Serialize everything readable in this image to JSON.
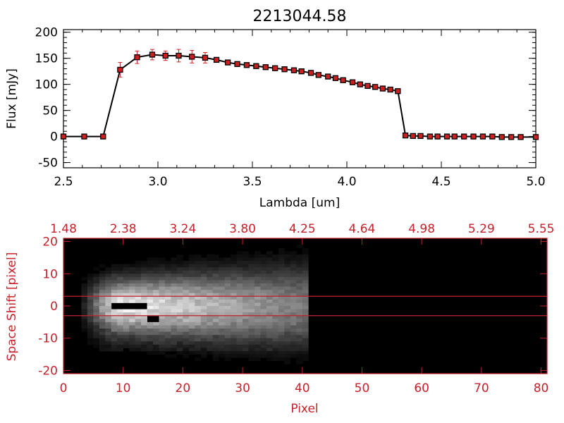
{
  "chart_data": [
    {
      "type": "line",
      "title": "2213044.58",
      "xlabel": "Lambda [um]",
      "ylabel": "Flux [mJy]",
      "xlim": [
        2.5,
        5.0
      ],
      "ylim": [
        -60,
        205
      ],
      "x_ticks": [
        "2.5",
        "3.0",
        "3.5",
        "4.0",
        "4.5",
        "5.0"
      ],
      "y_ticks": [
        "200",
        "150",
        "100",
        "50",
        "0",
        "-50"
      ],
      "x_tick_values": [
        2.5,
        3.0,
        3.5,
        4.0,
        4.5,
        5.0
      ],
      "y_tick_values": [
        200,
        150,
        100,
        50,
        0,
        -50
      ],
      "series": [
        {
          "x": [
            2.5,
            2.61,
            2.71,
            2.8,
            2.89,
            2.97,
            3.04,
            3.11,
            3.18,
            3.25,
            3.31,
            3.37,
            3.42,
            3.47,
            3.52,
            3.57,
            3.62,
            3.67,
            3.72,
            3.76,
            3.81,
            3.85,
            3.9,
            3.94,
            3.98,
            4.03,
            4.07,
            4.11,
            4.15,
            4.19,
            4.23,
            4.27,
            4.31,
            4.35,
            4.39,
            4.44,
            4.48,
            4.53,
            4.57,
            4.62,
            4.67,
            4.72,
            4.77,
            4.82,
            4.87,
            4.92,
            5.0
          ],
          "values": [
            0,
            0,
            0,
            128,
            152,
            157,
            155,
            155,
            153,
            151,
            147,
            142,
            139,
            137,
            135,
            133,
            131,
            129,
            127,
            125,
            122,
            118,
            115,
            112,
            108,
            104,
            100,
            97,
            95,
            92,
            90,
            87,
            2,
            1,
            1,
            0,
            0,
            0,
            0,
            0,
            0,
            0,
            0,
            -1,
            -1,
            -1,
            -1
          ],
          "errors": [
            0,
            0,
            0,
            14,
            12,
            10,
            9,
            12,
            12,
            10,
            4,
            3,
            2,
            2,
            2,
            2,
            2,
            2,
            2,
            2,
            2,
            2,
            2,
            2,
            2,
            2,
            2,
            2,
            2,
            2,
            2,
            2,
            0,
            0,
            0,
            0,
            0,
            0,
            0,
            0,
            0,
            0,
            0,
            0,
            0,
            0,
            0
          ]
        }
      ],
      "colors": {
        "line": "#000000",
        "marker": "#cc2020",
        "errorbar": "#cc2020"
      }
    },
    {
      "type": "heatmap",
      "xlabel": "Pixel",
      "ylabel": "Space Shift [pixel]",
      "xlim": [
        0,
        81
      ],
      "ylim": [
        -21,
        21
      ],
      "x_ticks": [
        "0",
        "10",
        "20",
        "30",
        "40",
        "50",
        "60",
        "70",
        "80"
      ],
      "y_ticks": [
        "20",
        "10",
        "0",
        "-10",
        "-20"
      ],
      "x_tick_values": [
        0,
        10,
        20,
        30,
        40,
        50,
        60,
        70,
        80
      ],
      "y_tick_values": [
        20,
        10,
        0,
        -10,
        -20
      ],
      "top_ticks": [
        "1.48",
        "2.38",
        "3.24",
        "3.80",
        "4.25",
        "4.64",
        "4.98",
        "5.29",
        "5.55"
      ],
      "guide_lines": [
        3,
        -3
      ],
      "colormap": "grayscale",
      "colors": {
        "axis": "#c8202a",
        "guide": "#c8202a"
      }
    }
  ]
}
